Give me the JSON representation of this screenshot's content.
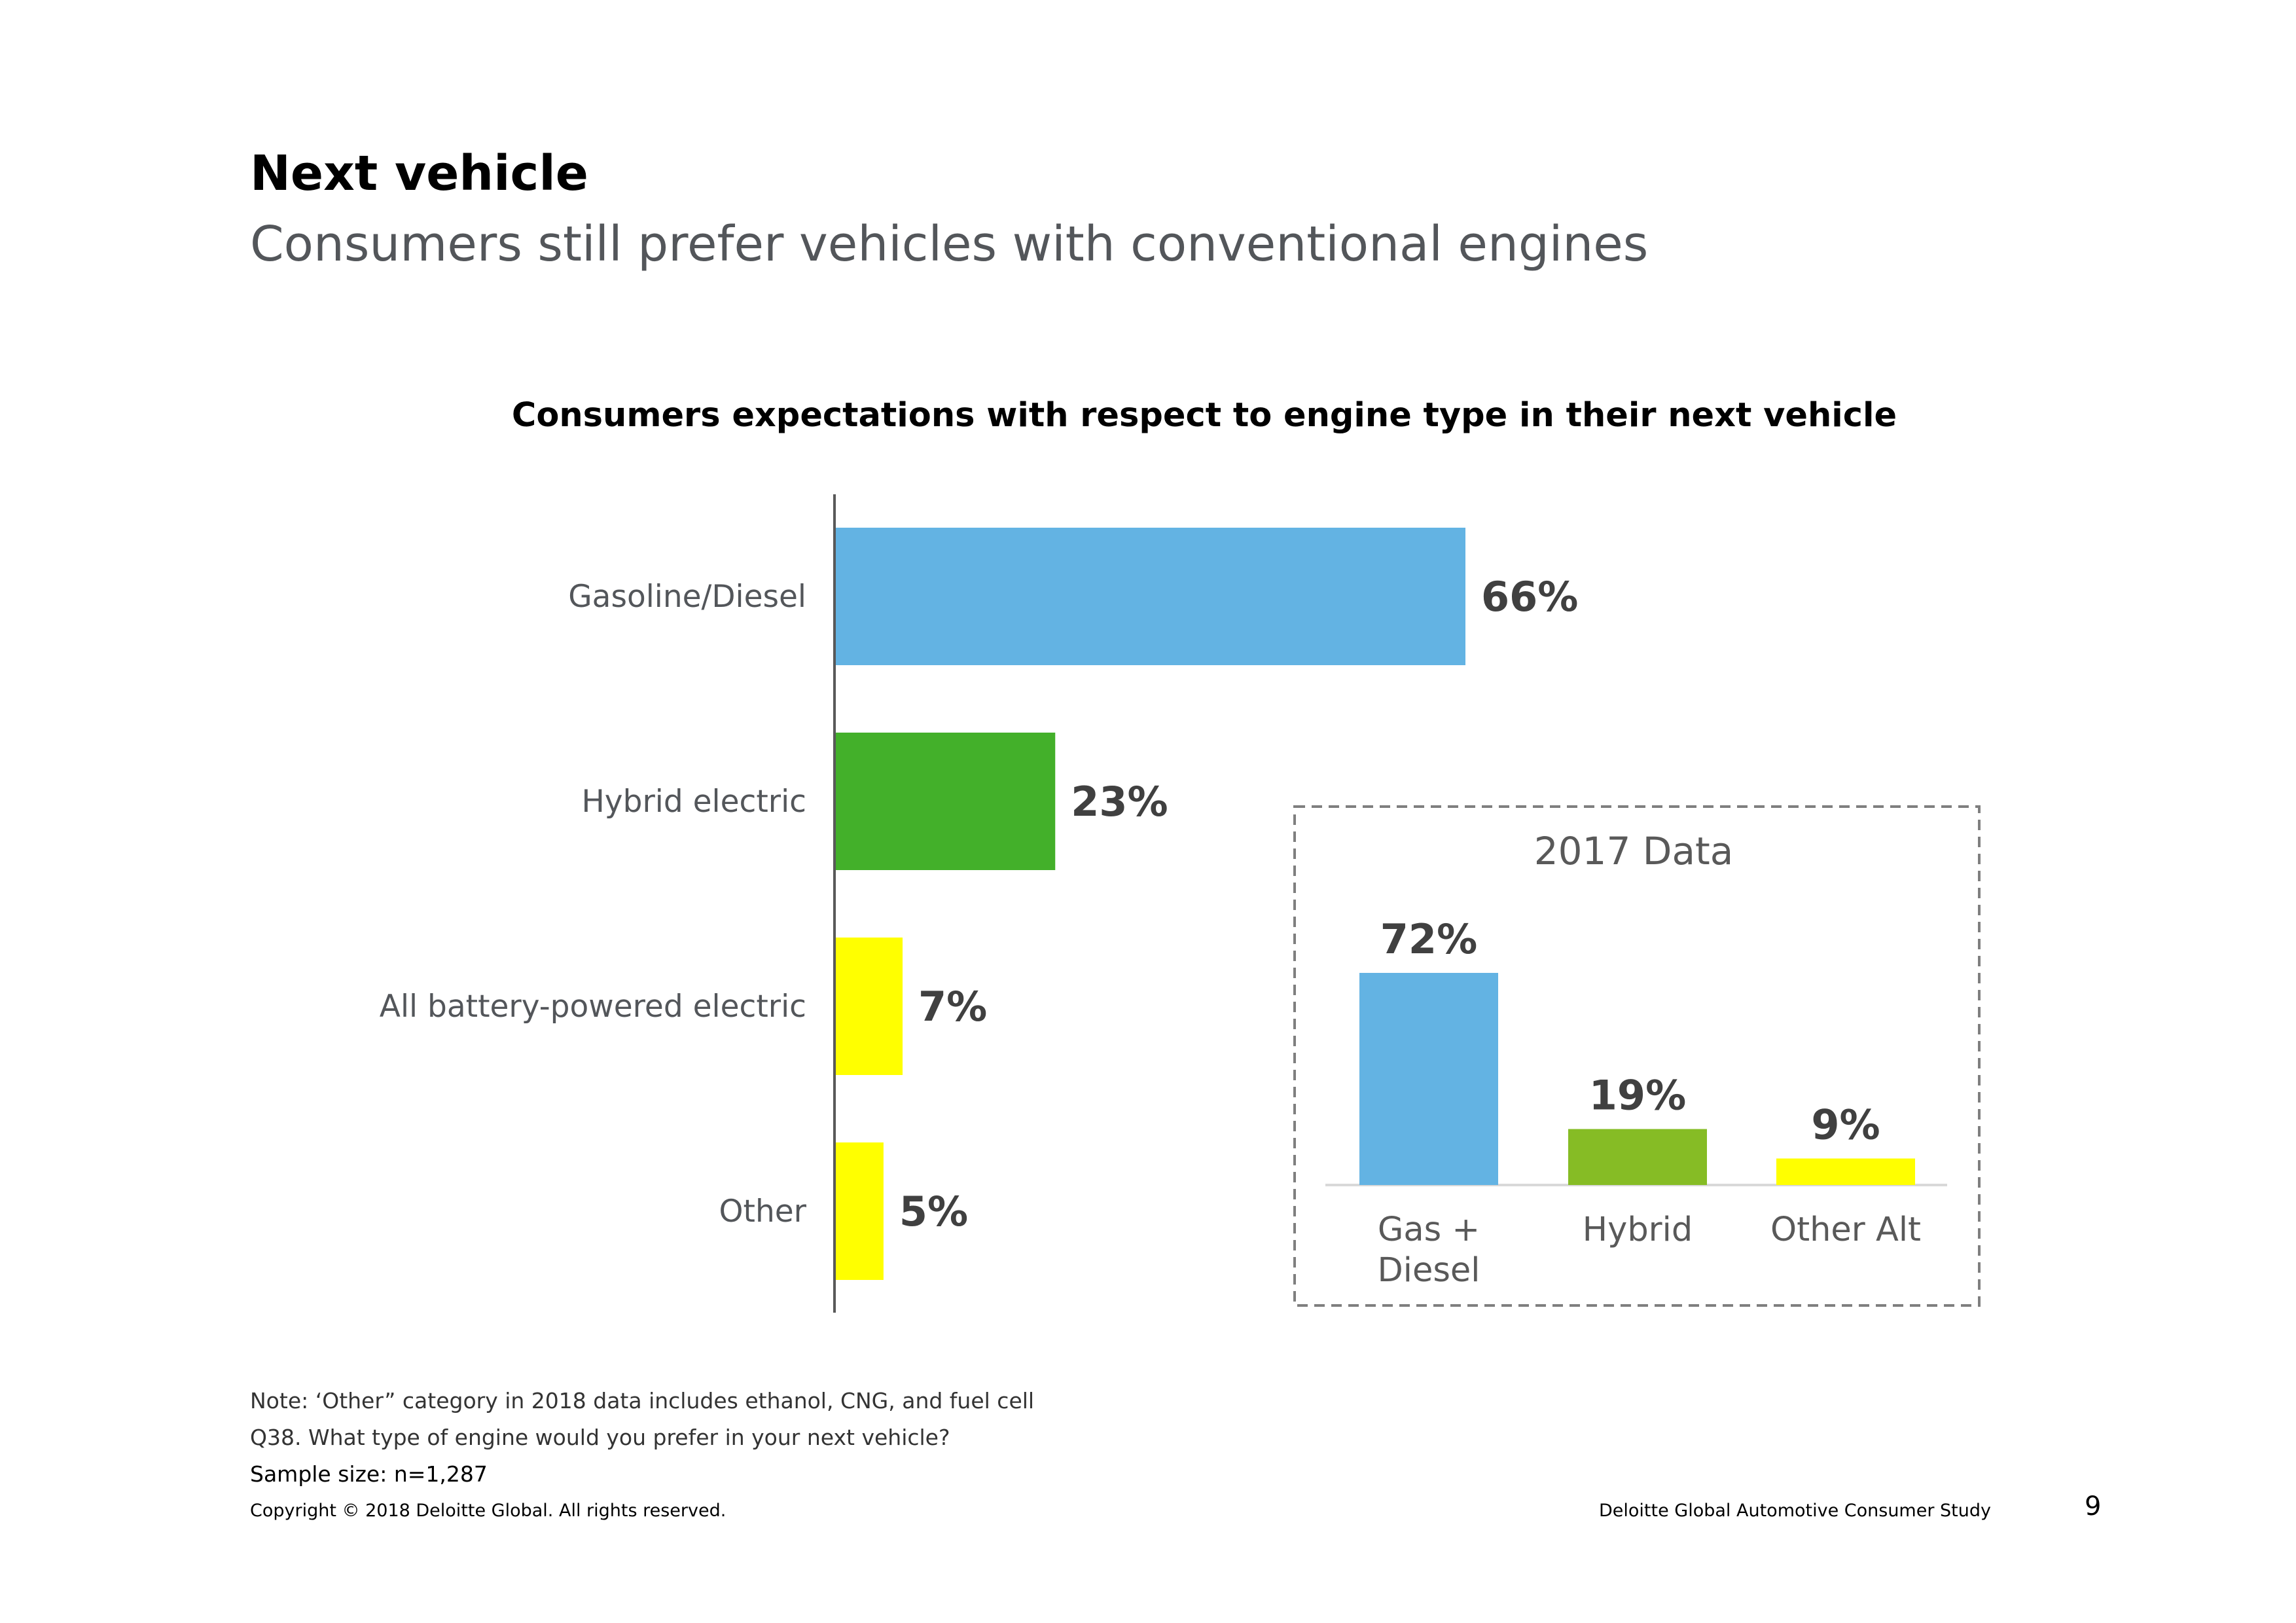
{
  "page": {
    "title": "Next vehicle",
    "subtitle": "Consumers still prefer vehicles with conventional engines"
  },
  "chart_data": [
    {
      "type": "bar",
      "orientation": "horizontal",
      "title": "Consumers expectations with respect to engine type in their next vehicle",
      "categories": [
        "Gasoline/Diesel",
        "Hybrid electric",
        "All battery-powered electric",
        "Other"
      ],
      "values": [
        66,
        23,
        7,
        5
      ],
      "value_labels": [
        "66%",
        "23%",
        "7%",
        "5%"
      ],
      "colors": [
        "#63b3e3",
        "#43b02a",
        "#ffff00",
        "#ffff00"
      ],
      "xlabel": "",
      "ylabel": "",
      "xlim": [
        0,
        100
      ],
      "grid": false,
      "legend": "none"
    },
    {
      "type": "bar",
      "orientation": "vertical",
      "title": "2017 Data",
      "categories": [
        "Gas + Diesel",
        "Hybrid",
        "Other Alt"
      ],
      "category_lines": [
        [
          "Gas +",
          "Diesel"
        ],
        [
          "Hybrid"
        ],
        [
          "Other Alt"
        ]
      ],
      "values": [
        72,
        19,
        9
      ],
      "value_labels": [
        "72%",
        "19%",
        "9%"
      ],
      "colors": [
        "#63b3e3",
        "#86bc25",
        "#ffff00"
      ],
      "xlabel": "",
      "ylabel": "",
      "ylim": [
        0,
        100
      ],
      "grid": false,
      "legend": "none"
    }
  ],
  "footnotes": {
    "note": "Note: ‘Other” category in 2018 data includes ethanol, CNG, and fuel cell",
    "question": "Q38. What type of engine would you prefer in your next vehicle?",
    "sample": "Sample size: n=1,287"
  },
  "footer": {
    "copyright": "Copyright © 2018 Deloitte Global. All rights reserved.",
    "study": "Deloitte Global Automotive Consumer Study",
    "page_number": "9"
  }
}
